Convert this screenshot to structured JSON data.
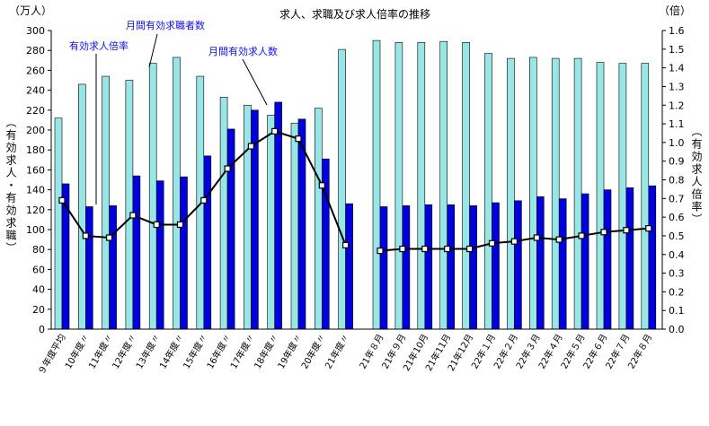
{
  "chart_data": {
    "type": "bar",
    "title": "求人、求職及び求人倍率の推移",
    "left_unit": "（万人）",
    "right_unit": "（倍）",
    "ylabel_left": "（有効求人・有効求職）",
    "ylabel_right": "（有効求人倍率）",
    "ylim": [
      0,
      300
    ],
    "y2lim": [
      0,
      1.6
    ],
    "yticks": [
      "0",
      "20",
      "40",
      "60",
      "80",
      "100",
      "120",
      "140",
      "160",
      "180",
      "200",
      "220",
      "240",
      "260",
      "280",
      "300"
    ],
    "y2ticks": [
      "0.0",
      "0.1",
      "0.2",
      "0.3",
      "0.4",
      "0.5",
      "0.6",
      "0.7",
      "0.8",
      "0.9",
      "1.0",
      "1.1",
      "1.2",
      "1.3",
      "1.4",
      "1.5",
      "1.6"
    ],
    "grid": false,
    "categories": [
      "９年度平均",
      "10年度〃",
      "11年度〃",
      "12年度〃",
      "13年度〃",
      "14年度〃",
      "15年度〃",
      "16年度〃",
      "17年度〃",
      "18年度〃",
      "19年度〃",
      "20年度〃",
      "21年度〃",
      "21年８月",
      "21年９月",
      "21年10月",
      "21年11月",
      "21年12月",
      "22年１月",
      "22年２月",
      "22年３月",
      "22年４月",
      "22年５月",
      "22年６月",
      "22年７月",
      "22年８月"
    ],
    "series": [
      {
        "name": "月間有効求職者数",
        "type": "bar",
        "color": "#99e6e6",
        "values": [
          212,
          246,
          254,
          250,
          267,
          273,
          254,
          233,
          225,
          215,
          207,
          222,
          281,
          290,
          288,
          288,
          289,
          288,
          277,
          272,
          273,
          272,
          272,
          268,
          267,
          267
        ]
      },
      {
        "name": "月間有効求人数",
        "type": "bar",
        "color": "#0000dd",
        "values": [
          146,
          123,
          124,
          154,
          149,
          153,
          174,
          201,
          220,
          228,
          211,
          171,
          126,
          123,
          124,
          125,
          125,
          124,
          127,
          129,
          133,
          131,
          136,
          140,
          142,
          144
        ]
      },
      {
        "name": "有効求人倍率",
        "type": "line",
        "axis": "right",
        "color": "#000000",
        "values": [
          0.69,
          0.5,
          0.49,
          0.61,
          0.56,
          0.56,
          0.69,
          0.86,
          0.98,
          1.06,
          1.02,
          0.77,
          0.45,
          0.42,
          0.43,
          0.43,
          0.43,
          0.43,
          0.46,
          0.47,
          0.49,
          0.48,
          0.5,
          0.52,
          0.53,
          0.54
        ]
      }
    ],
    "annotations": [
      "有効求人倍率",
      "月間有効求職者数",
      "月間有効求人数"
    ]
  }
}
